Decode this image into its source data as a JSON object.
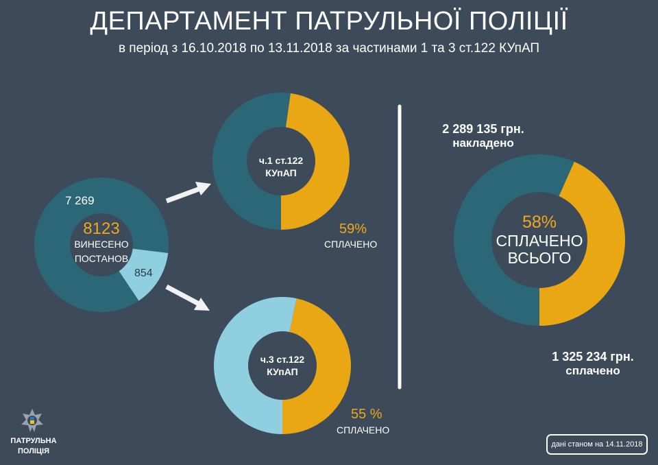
{
  "header": {
    "title": "ДЕПАРТАМЕНТ ПАТРУЛЬНОЇ ПОЛІЦІЇ",
    "subtitle": "в період з 16.10.2018 по 13.11.2018 за частинами 1 та 3 ст.122 КУпАП"
  },
  "colors": {
    "background": "#3d4a5a",
    "teal": "#2b6776",
    "orange": "#e8a713",
    "light_blue": "#8fcfe0"
  },
  "chart_data": [
    {
      "type": "pie",
      "donut": true,
      "center_value": "8123",
      "center_label_1": "ВИНЕСЕНО",
      "center_label_2": "ПОСТАНОВ",
      "categories": [
        "ч.1 ст.122 КУпАП",
        "ч.3 ст.122 КУпАП"
      ],
      "values": [
        7269,
        854
      ],
      "labels": [
        "7 269",
        "854"
      ],
      "colors": [
        "#2b6776",
        "#8fcfe0"
      ]
    },
    {
      "type": "pie",
      "donut": true,
      "center_label_1": "ч.1 ст.122",
      "center_label_2": "КУпАП",
      "paid_percent": 59,
      "percent_label": "59%",
      "caption": "СПЛАЧЕНО",
      "colors": [
        "#2b6776",
        "#e8a713"
      ]
    },
    {
      "type": "pie",
      "donut": true,
      "center_label_1": "ч.3 ст.122",
      "center_label_2": "КУпАП",
      "paid_percent": 55,
      "percent_label": "55 %",
      "caption": "СПЛАЧЕНО",
      "colors": [
        "#8fcfe0",
        "#e8a713"
      ]
    },
    {
      "type": "pie",
      "donut": true,
      "paid_percent": 58,
      "percent_label": "58%",
      "center_label_1": "СПЛАЧЕНО",
      "center_label_2": "ВСЬОГО",
      "imposed_amount": "2 289 135 грн.",
      "imposed_label": "накладено",
      "paid_amount": "1 325 234 грн.",
      "paid_label": "сплачено",
      "colors": [
        "#2b6776",
        "#e8a713"
      ]
    }
  ],
  "logo": {
    "line1": "ПАТРУЛЬНА",
    "line2": "ПОЛІЦІЯ"
  },
  "footer": {
    "date_note": "дані станом на 14.11.2018"
  }
}
